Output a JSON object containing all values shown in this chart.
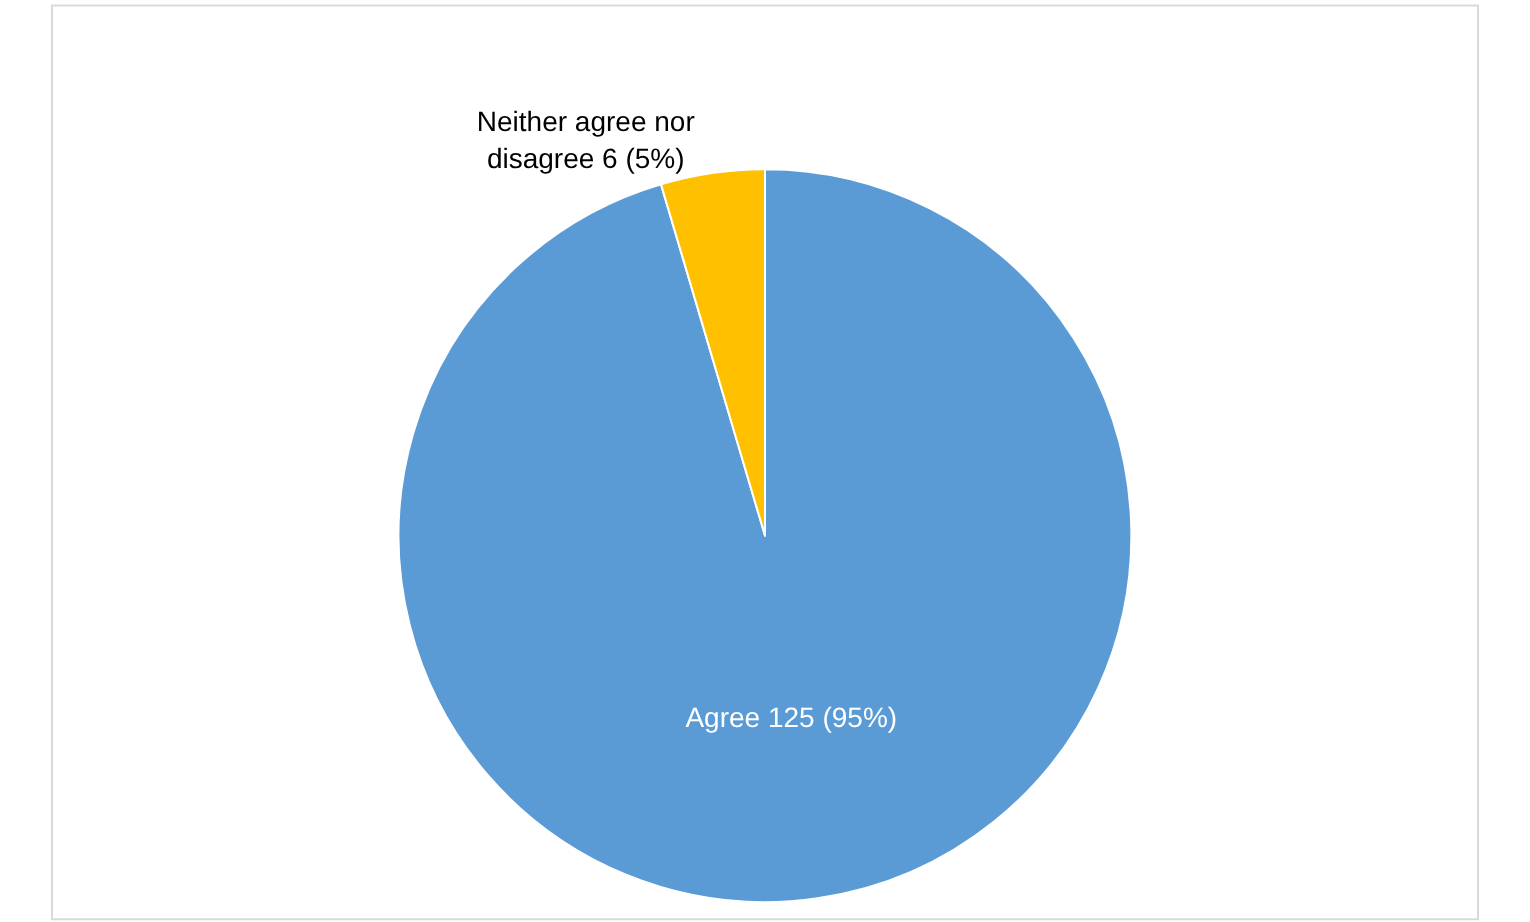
{
  "chart_data": {
    "type": "pie",
    "categories": [
      "Agree",
      "Neither agree nor disagree"
    ],
    "values": [
      125,
      6
    ],
    "colors": [
      "#5b9bd5",
      "#ffc000"
    ],
    "value_labels": [
      "125 (95%)",
      "6 (5%)"
    ],
    "legend": false
  }
}
